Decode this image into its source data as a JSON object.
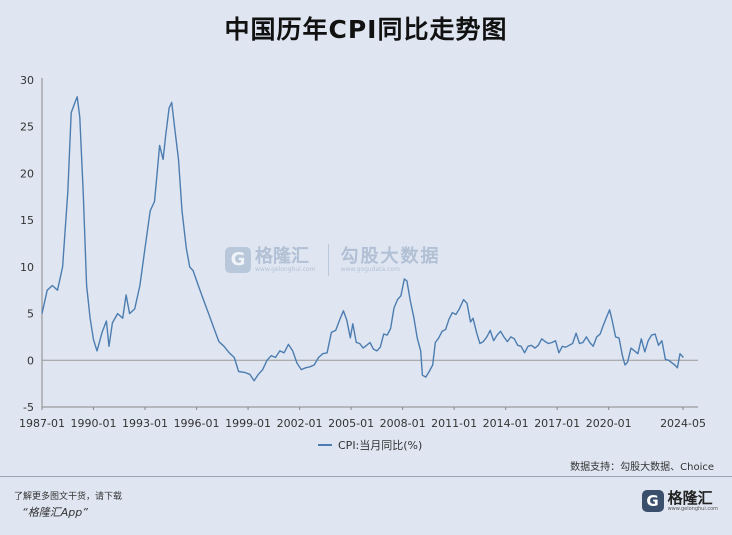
{
  "chart_data": {
    "type": "line",
    "title": "中国历年CPI同比走势图",
    "series": [
      {
        "name": "CPI:当月同比(%)",
        "color": "#4d7db0",
        "points": [
          [
            1987.0,
            5.0
          ],
          [
            1987.3,
            7.5
          ],
          [
            1987.6,
            8.0
          ],
          [
            1987.9,
            7.5
          ],
          [
            1988.2,
            10.0
          ],
          [
            1988.5,
            18.0
          ],
          [
            1988.7,
            26.5
          ],
          [
            1988.9,
            27.5
          ],
          [
            1989.05,
            28.2
          ],
          [
            1989.2,
            26.0
          ],
          [
            1989.4,
            18.0
          ],
          [
            1989.6,
            8.0
          ],
          [
            1989.8,
            4.5
          ],
          [
            1990.0,
            2.2
          ],
          [
            1990.2,
            1.0
          ],
          [
            1990.5,
            3.0
          ],
          [
            1990.75,
            4.2
          ],
          [
            1990.9,
            1.5
          ],
          [
            1991.1,
            4.0
          ],
          [
            1991.4,
            5.0
          ],
          [
            1991.7,
            4.5
          ],
          [
            1991.9,
            7.0
          ],
          [
            1992.1,
            5.0
          ],
          [
            1992.4,
            5.5
          ],
          [
            1992.7,
            8.0
          ],
          [
            1993.0,
            12.0
          ],
          [
            1993.3,
            16.0
          ],
          [
            1993.55,
            17.0
          ],
          [
            1993.7,
            20.0
          ],
          [
            1993.85,
            23.0
          ],
          [
            1994.05,
            21.5
          ],
          [
            1994.2,
            24.0
          ],
          [
            1994.4,
            27.0
          ],
          [
            1994.55,
            27.6
          ],
          [
            1994.75,
            24.5
          ],
          [
            1994.95,
            21.5
          ],
          [
            1995.15,
            16.0
          ],
          [
            1995.4,
            12.0
          ],
          [
            1995.6,
            10.0
          ],
          [
            1995.8,
            9.6
          ],
          [
            1996.1,
            8.0
          ],
          [
            1996.4,
            6.5
          ],
          [
            1996.7,
            5.0
          ],
          [
            1997.0,
            3.5
          ],
          [
            1997.3,
            2.0
          ],
          [
            1997.6,
            1.5
          ],
          [
            1997.9,
            0.8
          ],
          [
            1998.2,
            0.3
          ],
          [
            1998.45,
            -1.2
          ],
          [
            1998.8,
            -1.3
          ],
          [
            1999.1,
            -1.5
          ],
          [
            1999.35,
            -2.2
          ],
          [
            1999.6,
            -1.5
          ],
          [
            1999.85,
            -1.0
          ],
          [
            2000.1,
            0.0
          ],
          [
            2000.35,
            0.5
          ],
          [
            2000.6,
            0.3
          ],
          [
            2000.85,
            1.0
          ],
          [
            2001.1,
            0.8
          ],
          [
            2001.35,
            1.7
          ],
          [
            2001.6,
            1.0
          ],
          [
            2001.85,
            -0.3
          ],
          [
            2002.1,
            -1.0
          ],
          [
            2002.35,
            -0.8
          ],
          [
            2002.6,
            -0.7
          ],
          [
            2002.85,
            -0.5
          ],
          [
            2003.1,
            0.3
          ],
          [
            2003.35,
            0.7
          ],
          [
            2003.6,
            0.8
          ],
          [
            2003.85,
            3.0
          ],
          [
            2004.1,
            3.2
          ],
          [
            2004.35,
            4.4
          ],
          [
            2004.55,
            5.3
          ],
          [
            2004.75,
            4.3
          ],
          [
            2004.95,
            2.4
          ],
          [
            2005.1,
            3.9
          ],
          [
            2005.3,
            1.9
          ],
          [
            2005.5,
            1.8
          ],
          [
            2005.7,
            1.3
          ],
          [
            2005.9,
            1.6
          ],
          [
            2006.1,
            1.9
          ],
          [
            2006.3,
            1.2
          ],
          [
            2006.5,
            1.0
          ],
          [
            2006.7,
            1.4
          ],
          [
            2006.9,
            2.8
          ],
          [
            2007.1,
            2.7
          ],
          [
            2007.3,
            3.4
          ],
          [
            2007.5,
            5.6
          ],
          [
            2007.7,
            6.5
          ],
          [
            2007.9,
            6.9
          ],
          [
            2008.1,
            8.7
          ],
          [
            2008.25,
            8.5
          ],
          [
            2008.45,
            6.3
          ],
          [
            2008.65,
            4.6
          ],
          [
            2008.85,
            2.4
          ],
          [
            2009.05,
            1.0
          ],
          [
            2009.15,
            -1.6
          ],
          [
            2009.35,
            -1.8
          ],
          [
            2009.55,
            -1.2
          ],
          [
            2009.75,
            -0.5
          ],
          [
            2009.9,
            1.9
          ],
          [
            2010.1,
            2.4
          ],
          [
            2010.3,
            3.1
          ],
          [
            2010.5,
            3.3
          ],
          [
            2010.7,
            4.4
          ],
          [
            2010.9,
            5.1
          ],
          [
            2011.1,
            4.9
          ],
          [
            2011.3,
            5.5
          ],
          [
            2011.55,
            6.5
          ],
          [
            2011.75,
            6.1
          ],
          [
            2011.95,
            4.1
          ],
          [
            2012.1,
            4.5
          ],
          [
            2012.3,
            3.0
          ],
          [
            2012.5,
            1.8
          ],
          [
            2012.7,
            2.0
          ],
          [
            2012.9,
            2.5
          ],
          [
            2013.1,
            3.2
          ],
          [
            2013.3,
            2.1
          ],
          [
            2013.5,
            2.7
          ],
          [
            2013.7,
            3.1
          ],
          [
            2013.9,
            2.5
          ],
          [
            2014.1,
            2.0
          ],
          [
            2014.3,
            2.5
          ],
          [
            2014.5,
            2.3
          ],
          [
            2014.7,
            1.6
          ],
          [
            2014.9,
            1.5
          ],
          [
            2015.1,
            0.8
          ],
          [
            2015.3,
            1.5
          ],
          [
            2015.5,
            1.6
          ],
          [
            2015.7,
            1.3
          ],
          [
            2015.9,
            1.6
          ],
          [
            2016.1,
            2.3
          ],
          [
            2016.3,
            2.0
          ],
          [
            2016.5,
            1.8
          ],
          [
            2016.7,
            1.9
          ],
          [
            2016.9,
            2.1
          ],
          [
            2017.1,
            0.8
          ],
          [
            2017.3,
            1.5
          ],
          [
            2017.5,
            1.4
          ],
          [
            2017.7,
            1.6
          ],
          [
            2017.9,
            1.8
          ],
          [
            2018.1,
            2.9
          ],
          [
            2018.3,
            1.8
          ],
          [
            2018.5,
            1.9
          ],
          [
            2018.7,
            2.5
          ],
          [
            2018.9,
            1.9
          ],
          [
            2019.1,
            1.5
          ],
          [
            2019.3,
            2.5
          ],
          [
            2019.5,
            2.8
          ],
          [
            2019.7,
            3.8
          ],
          [
            2019.85,
            4.5
          ],
          [
            2020.05,
            5.4
          ],
          [
            2020.2,
            4.3
          ],
          [
            2020.4,
            2.5
          ],
          [
            2020.6,
            2.4
          ],
          [
            2020.8,
            0.5
          ],
          [
            2020.95,
            -0.5
          ],
          [
            2021.1,
            -0.2
          ],
          [
            2021.3,
            1.3
          ],
          [
            2021.5,
            1.0
          ],
          [
            2021.7,
            0.7
          ],
          [
            2021.9,
            2.3
          ],
          [
            2022.1,
            0.9
          ],
          [
            2022.3,
            2.1
          ],
          [
            2022.5,
            2.7
          ],
          [
            2022.7,
            2.8
          ],
          [
            2022.9,
            1.6
          ],
          [
            2023.1,
            2.1
          ],
          [
            2023.3,
            0.1
          ],
          [
            2023.5,
            0.0
          ],
          [
            2023.7,
            -0.3
          ],
          [
            2023.85,
            -0.5
          ],
          [
            2024.0,
            -0.8
          ],
          [
            2024.15,
            0.7
          ],
          [
            2024.35,
            0.3
          ]
        ]
      }
    ],
    "xlim": [
      1987.0,
      2025.2
    ],
    "ylim": [
      -5,
      30
    ],
    "yticks": [
      -5,
      0,
      5,
      10,
      15,
      20,
      25,
      30
    ],
    "xticks": [
      {
        "value": 1987.0,
        "label": "1987-01"
      },
      {
        "value": 1990.0,
        "label": "1990-01"
      },
      {
        "value": 1993.0,
        "label": "1993-01"
      },
      {
        "value": 1996.0,
        "label": "1996-01"
      },
      {
        "value": 1999.0,
        "label": "1999-01"
      },
      {
        "value": 2002.0,
        "label": "2002-01"
      },
      {
        "value": 2005.0,
        "label": "2005-01"
      },
      {
        "value": 2008.0,
        "label": "2008-01"
      },
      {
        "value": 2011.0,
        "label": "2011-01"
      },
      {
        "value": 2014.0,
        "label": "2014-01"
      },
      {
        "value": 2017.0,
        "label": "2017-01"
      },
      {
        "value": 2020.0,
        "label": "2020-01"
      },
      {
        "value": 2024.33,
        "label": "2024-05"
      }
    ],
    "grid": false,
    "legend_position": "bottom-center"
  },
  "source": "数据支持：勾股大数据、Choice",
  "footer": {
    "line1": "了解更多图文干货，请下载",
    "line2": "“格隆汇App”"
  },
  "logo": {
    "icon": "G",
    "name": "格隆汇",
    "url": "www.gelonghui.com"
  },
  "watermark": {
    "icon": "G",
    "brand": "格隆汇",
    "brand_url": "www.gelonghui.com",
    "partner": "勾股大数据",
    "partner_url": "www.gogudata.com"
  }
}
